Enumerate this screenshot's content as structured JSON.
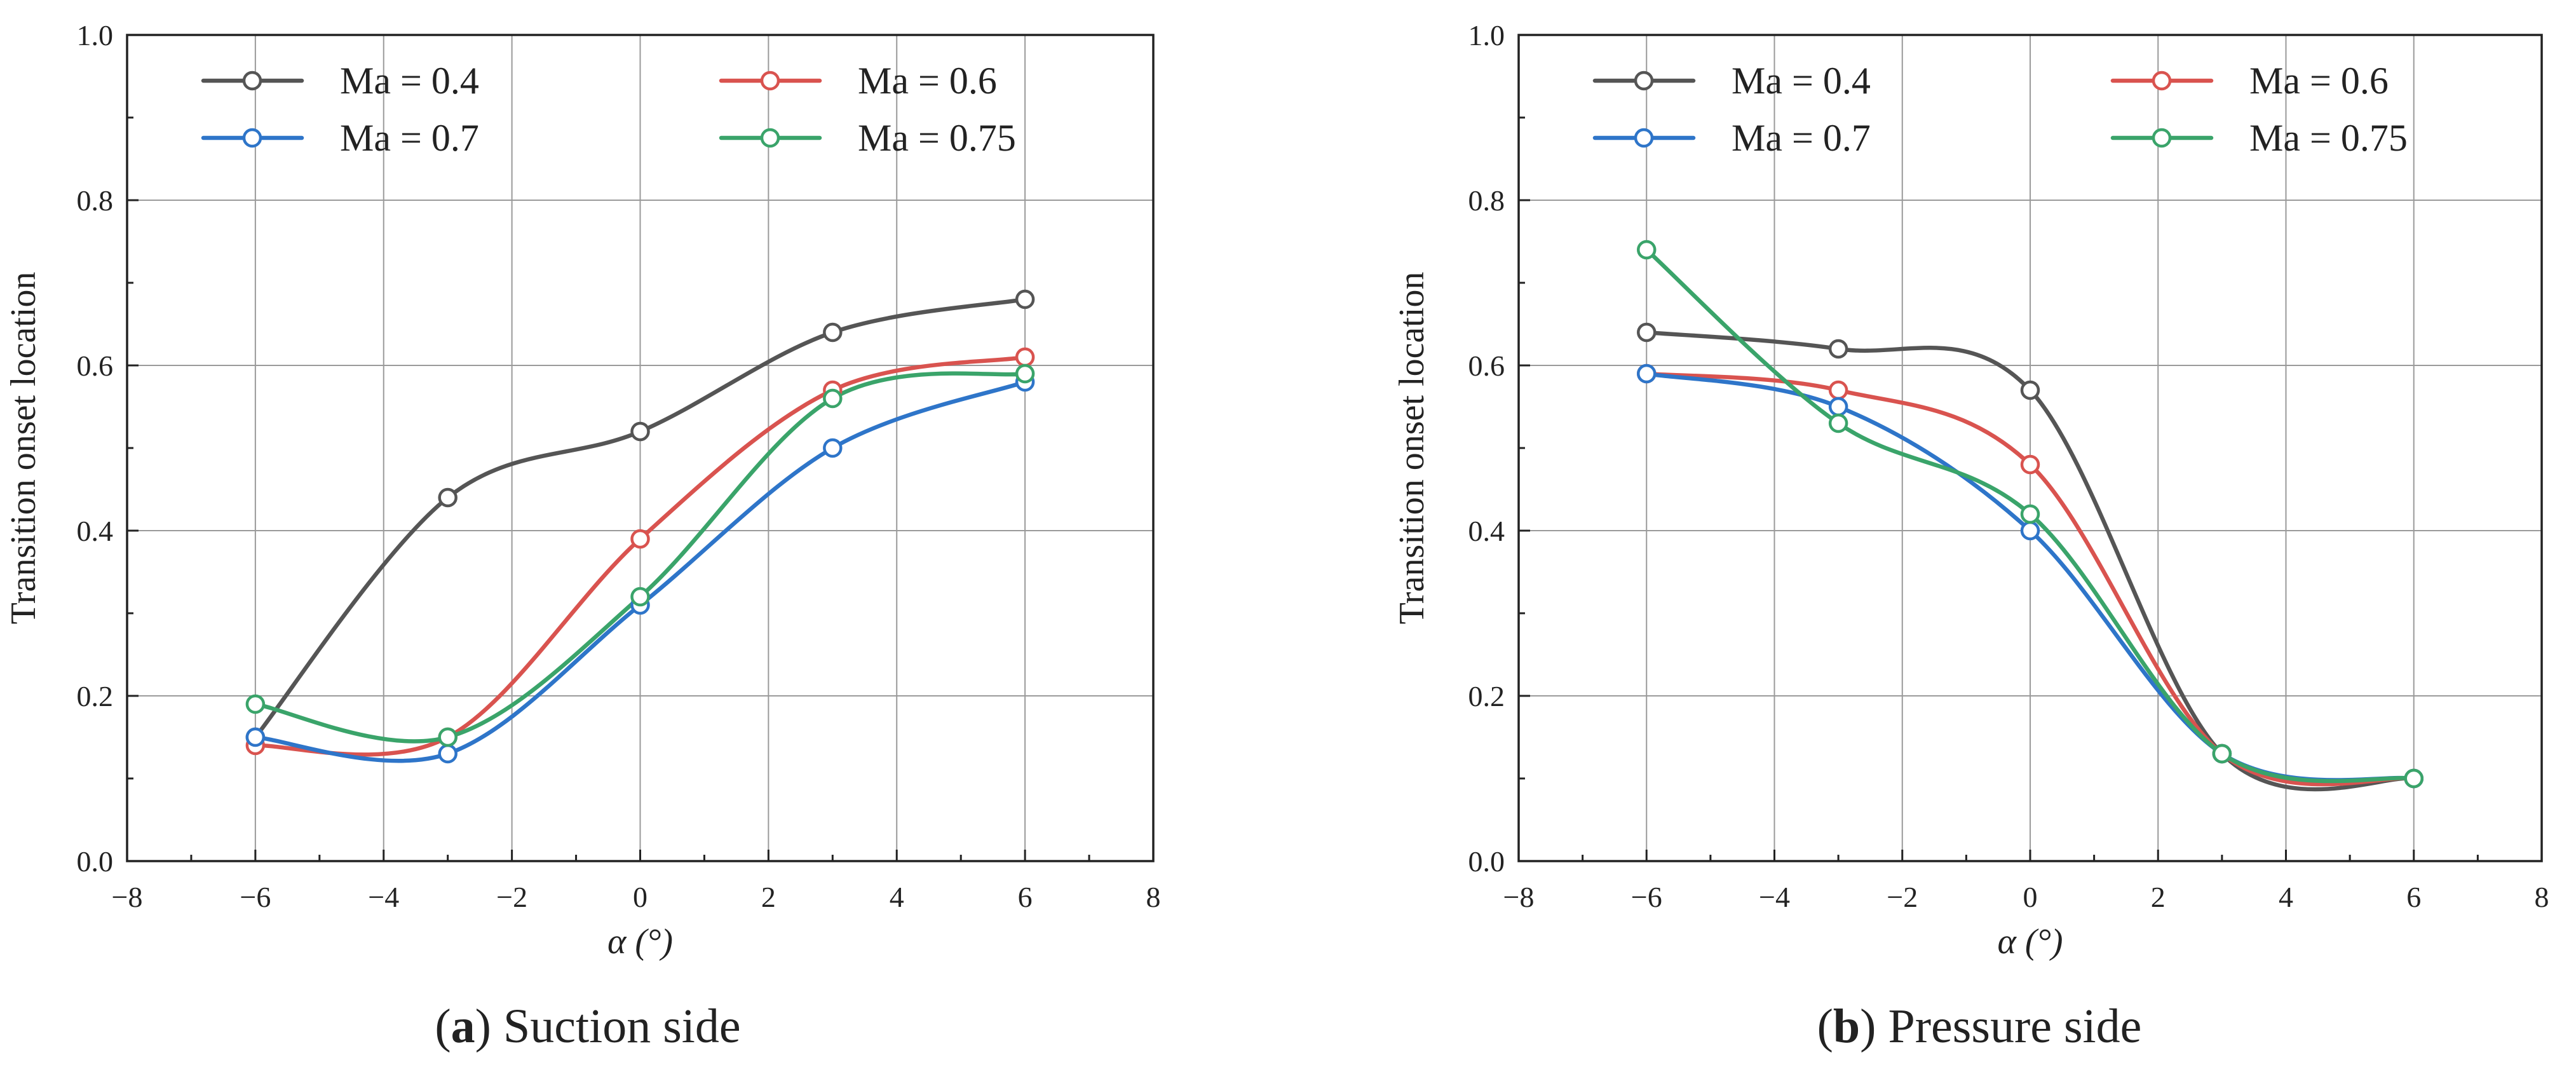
{
  "chart_data": [
    {
      "type": "line",
      "title": "",
      "caption_letter": "a",
      "caption_text": "Suction side",
      "xlabel": "α (°)",
      "ylabel": "Transition onset location",
      "xlim": [
        -8,
        8
      ],
      "ylim": [
        0.0,
        1.0
      ],
      "xticks": [
        -8,
        -6,
        -4,
        -2,
        0,
        2,
        4,
        6,
        8
      ],
      "xtick_labels": [
        "−8",
        "−6",
        "−4",
        "−2",
        "0",
        "2",
        "4",
        "6",
        "8"
      ],
      "yticks": [
        0.0,
        0.2,
        0.4,
        0.6,
        0.8,
        1.0
      ],
      "ytick_labels": [
        "0.0",
        "0.2",
        "0.4",
        "0.6",
        "0.8",
        "1.0"
      ],
      "grid": true,
      "legend_position": "top",
      "x": [
        -6,
        -3,
        0,
        3,
        6
      ],
      "series": [
        {
          "name": "Ma = 0.4",
          "color": "#555555",
          "values": [
            0.15,
            0.44,
            0.52,
            0.64,
            0.68
          ]
        },
        {
          "name": "Ma = 0.6",
          "color": "#d9534f",
          "values": [
            0.14,
            0.15,
            0.39,
            0.57,
            0.61
          ]
        },
        {
          "name": "Ma = 0.7",
          "color": "#2e75c9",
          "values": [
            0.15,
            0.13,
            0.31,
            0.5,
            0.58
          ]
        },
        {
          "name": "Ma = 0.75",
          "color": "#3aa46a",
          "values": [
            0.19,
            0.15,
            0.32,
            0.56,
            0.59
          ]
        }
      ]
    },
    {
      "type": "line",
      "title": "",
      "caption_letter": "b",
      "caption_text": "Pressure side",
      "xlabel": "α (°)",
      "ylabel": "Transition onset location",
      "xlim": [
        -8,
        8
      ],
      "ylim": [
        0.0,
        1.0
      ],
      "xticks": [
        -8,
        -6,
        -4,
        -2,
        0,
        2,
        4,
        6,
        8
      ],
      "xtick_labels": [
        "−8",
        "−6",
        "−4",
        "−2",
        "0",
        "2",
        "4",
        "6",
        "8"
      ],
      "yticks": [
        0.0,
        0.2,
        0.4,
        0.6,
        0.8,
        1.0
      ],
      "ytick_labels": [
        "0.0",
        "0.2",
        "0.4",
        "0.6",
        "0.8",
        "1.0"
      ],
      "grid": true,
      "legend_position": "top",
      "x": [
        -6,
        -3,
        0,
        3,
        6
      ],
      "series": [
        {
          "name": "Ma = 0.4",
          "color": "#555555",
          "values": [
            0.64,
            0.62,
            0.57,
            0.13,
            0.1
          ]
        },
        {
          "name": "Ma = 0.6",
          "color": "#d9534f",
          "values": [
            0.59,
            0.57,
            0.48,
            0.13,
            0.1
          ]
        },
        {
          "name": "Ma = 0.7",
          "color": "#2e75c9",
          "values": [
            0.59,
            0.55,
            0.4,
            0.13,
            0.1
          ]
        },
        {
          "name": "Ma = 0.75",
          "color": "#3aa46a",
          "values": [
            0.74,
            0.53,
            0.42,
            0.13,
            0.1
          ]
        }
      ]
    }
  ]
}
